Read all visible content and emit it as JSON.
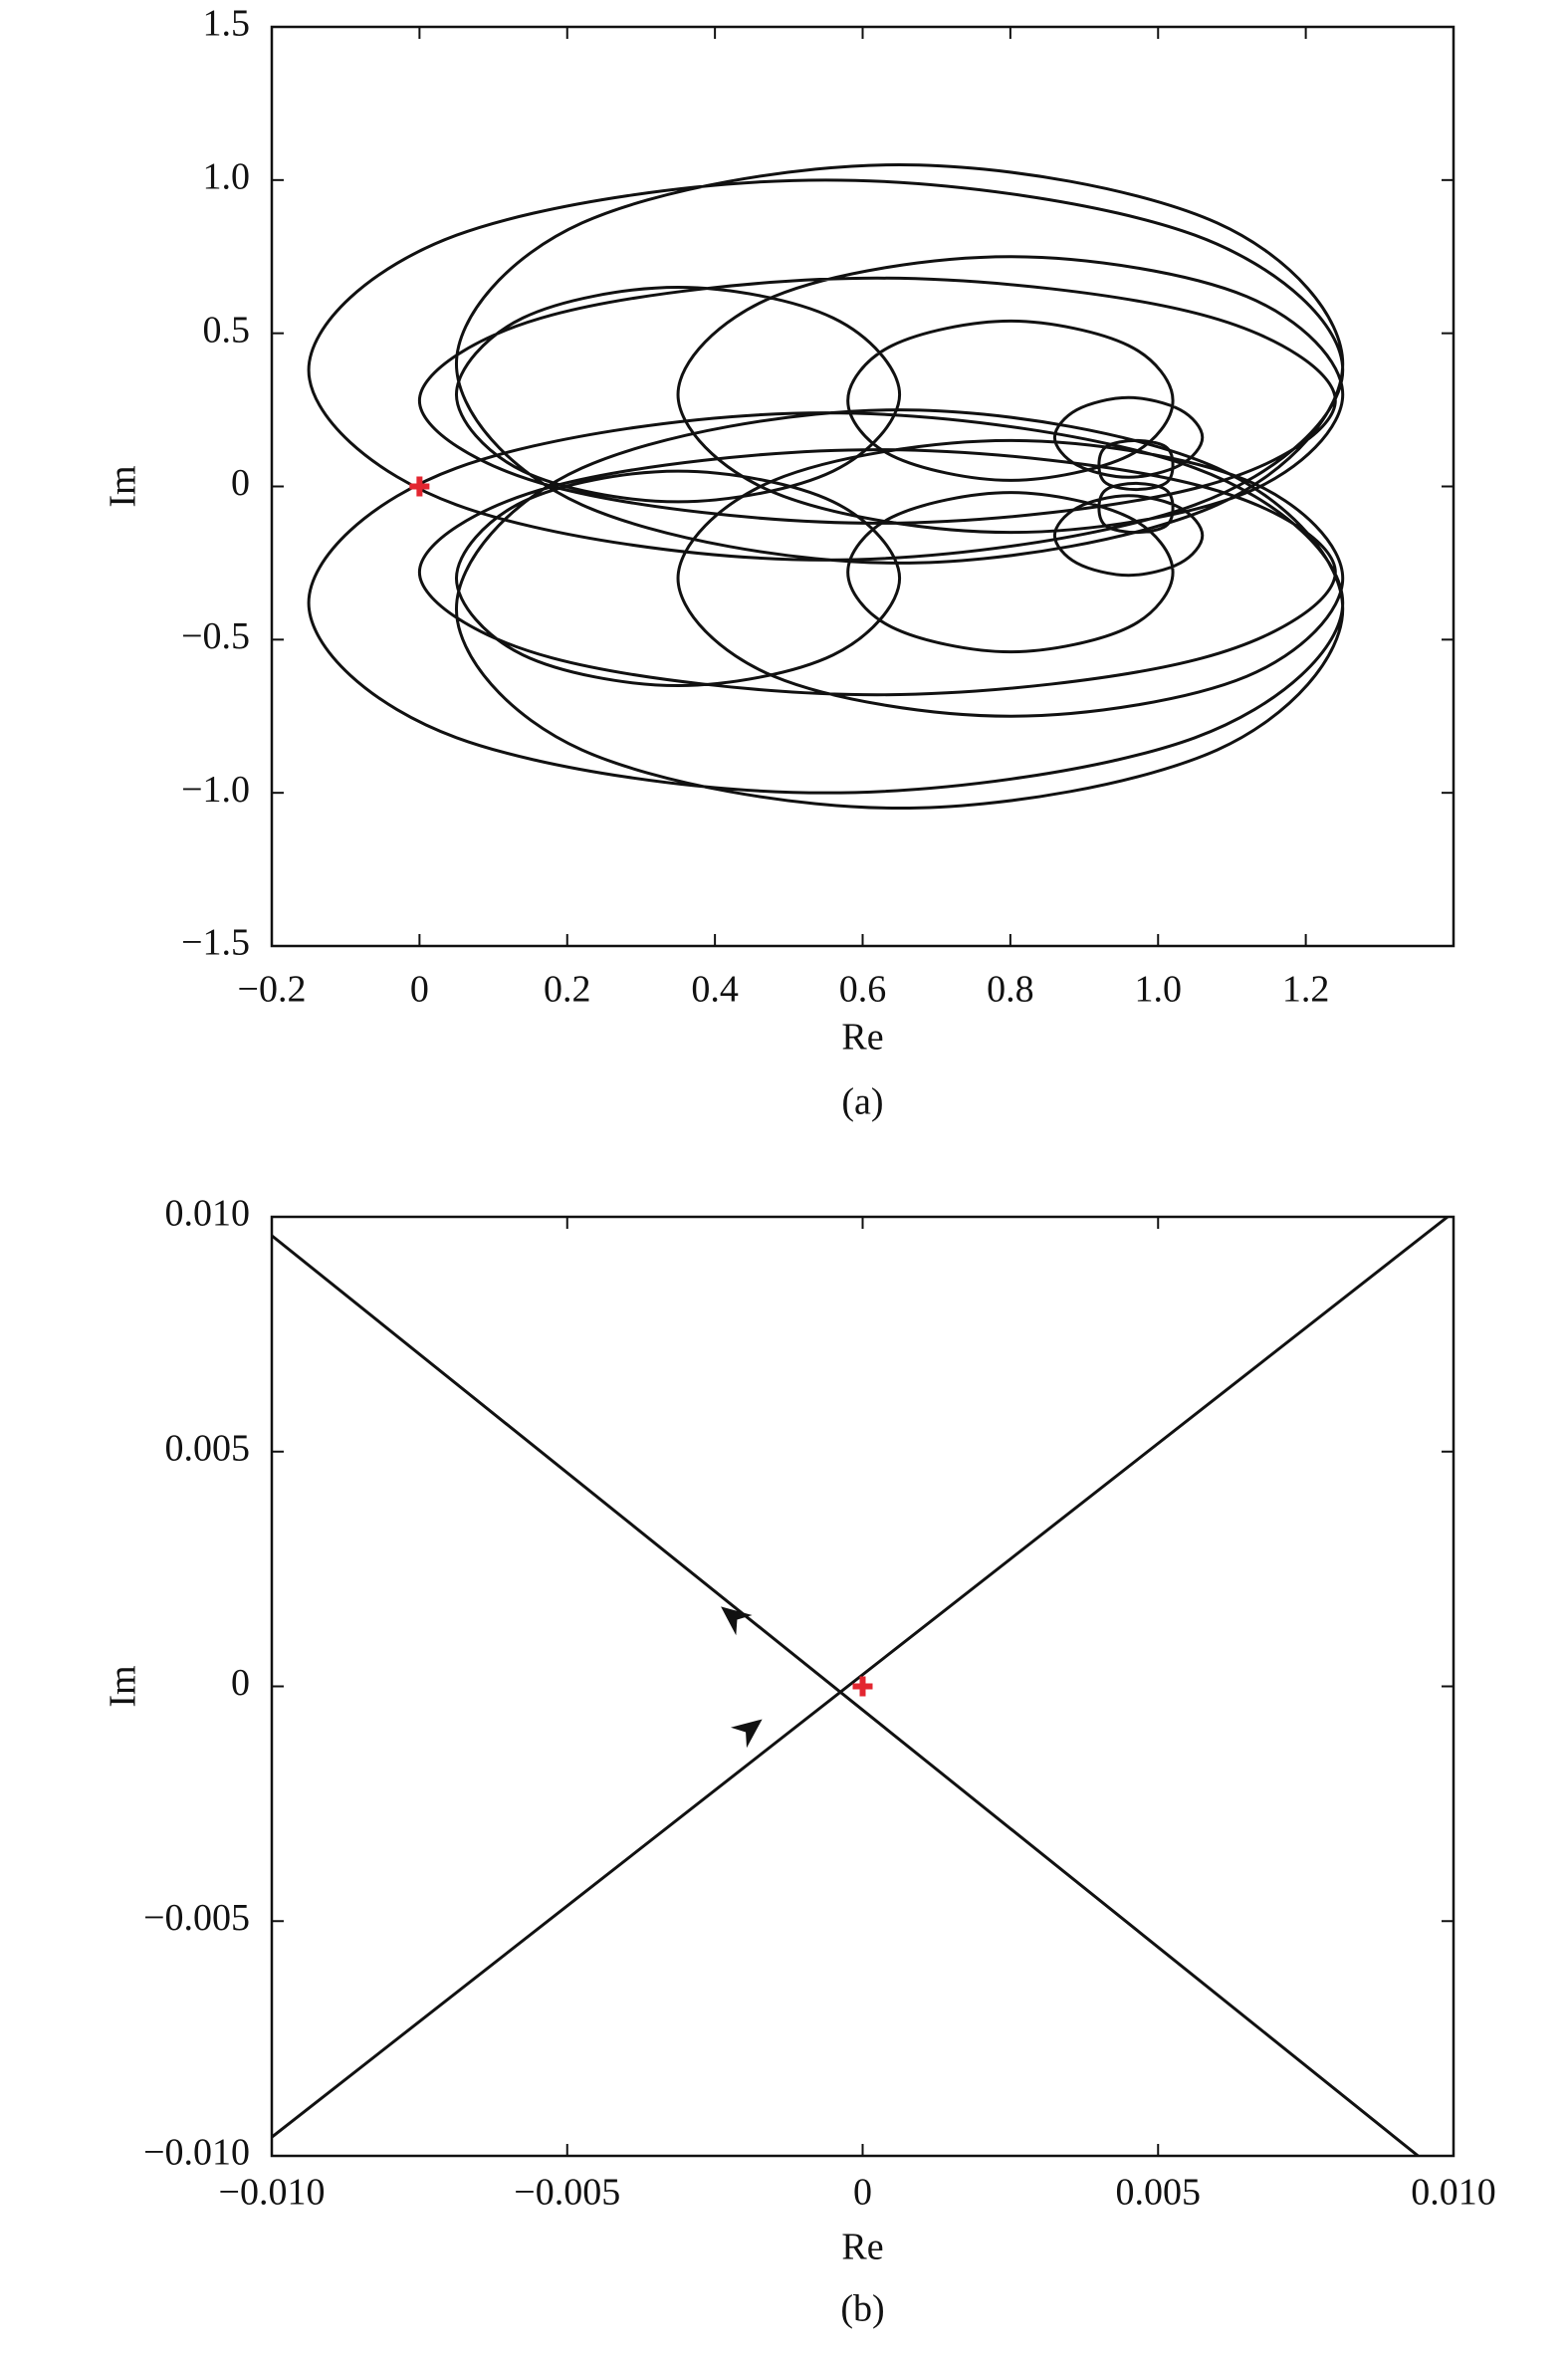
{
  "chart_data": [
    {
      "type": "line",
      "smooth": true,
      "xlabel": "Re",
      "ylabel": "Im",
      "caption": "(a)",
      "xlim": [
        -0.2,
        1.4
      ],
      "xticks": [
        {
          "value": -0.2,
          "label": "−0.2"
        },
        0,
        0.2,
        0.4,
        0.6,
        0.8,
        {
          "value": 1,
          "label": "1.0"
        },
        1.2
      ],
      "ylim": [
        -1.5,
        1.5
      ],
      "yticks": [
        {
          "value": -1.5,
          "label": "−1.5"
        },
        {
          "value": -1,
          "label": "−1.0"
        },
        {
          "value": -0.5,
          "label": "−0.5"
        },
        0,
        0.5,
        {
          "value": 1,
          "label": "1.0"
        },
        1.5
      ],
      "series": [
        {
          "color": "#111111",
          "x": [
            1.25,
            1.05,
            0.55,
            0.05,
            -0.15,
            0.05,
            0.55,
            1.05,
            1.25,
            null,
            1.25,
            1.08,
            0.65,
            0.22,
            0.05,
            0.22,
            0.65,
            1.08,
            1.25,
            null,
            1.24,
            1.06,
            0.62,
            0.18,
            0.0,
            0.18,
            0.62,
            1.06,
            1.24,
            null,
            0.65,
            0.56,
            0.35,
            0.14,
            0.05,
            0.14,
            0.35,
            0.56,
            0.65,
            null,
            1.25,
            1.12,
            0.8,
            0.48,
            0.35,
            0.48,
            0.8,
            1.12,
            1.25,
            null,
            1.02,
            0.96,
            0.8,
            0.64,
            0.58,
            0.64,
            0.8,
            0.96,
            1.02,
            null,
            1.06,
            1.03,
            0.96,
            0.89,
            0.86,
            0.89,
            0.96,
            1.03,
            1.06,
            null,
            1.02,
            1.01,
            0.97,
            0.93,
            0.92,
            0.93,
            0.97,
            1.01,
            1.02
          ],
          "y": [
            0.38,
            0.82,
            1.0,
            0.82,
            0.38,
            -0.06,
            -0.24,
            -0.06,
            0.38,
            null,
            0.4,
            0.86,
            1.05,
            0.86,
            0.4,
            -0.06,
            -0.25,
            -0.06,
            0.4,
            null,
            0.28,
            0.56,
            0.68,
            0.56,
            0.28,
            0.0,
            -0.12,
            0.0,
            0.28,
            null,
            0.3,
            0.55,
            0.65,
            0.55,
            0.3,
            0.05,
            -0.05,
            0.05,
            0.3,
            null,
            0.3,
            0.62,
            0.75,
            0.62,
            0.3,
            -0.02,
            -0.15,
            -0.02,
            0.3,
            null,
            0.28,
            0.46,
            0.54,
            0.46,
            0.28,
            0.1,
            0.02,
            0.1,
            0.28,
            null,
            0.16,
            0.25,
            0.29,
            0.25,
            0.16,
            0.07,
            0.03,
            0.07,
            0.16,
            null,
            0.07,
            0.13,
            0.15,
            0.13,
            0.07,
            0.01,
            -0.01,
            0.01,
            0.07
          ]
        },
        {
          "color": "#111111",
          "x": [
            1.25,
            1.05,
            0.55,
            0.05,
            -0.15,
            0.05,
            0.55,
            1.05,
            1.25,
            null,
            1.25,
            1.08,
            0.65,
            0.22,
            0.05,
            0.22,
            0.65,
            1.08,
            1.25,
            null,
            1.24,
            1.06,
            0.62,
            0.18,
            0.0,
            0.18,
            0.62,
            1.06,
            1.24,
            null,
            0.65,
            0.56,
            0.35,
            0.14,
            0.05,
            0.14,
            0.35,
            0.56,
            0.65,
            null,
            1.25,
            1.12,
            0.8,
            0.48,
            0.35,
            0.48,
            0.8,
            1.12,
            1.25,
            null,
            1.02,
            0.96,
            0.8,
            0.64,
            0.58,
            0.64,
            0.8,
            0.96,
            1.02,
            null,
            1.06,
            1.03,
            0.96,
            0.89,
            0.86,
            0.89,
            0.96,
            1.03,
            1.06,
            null,
            1.02,
            1.01,
            0.97,
            0.93,
            0.92,
            0.93,
            0.97,
            1.01,
            1.02
          ],
          "y": [
            -0.38,
            -0.82,
            -1.0,
            -0.82,
            -0.38,
            0.06,
            0.24,
            0.06,
            -0.38,
            null,
            -0.4,
            -0.86,
            -1.05,
            -0.86,
            -0.4,
            0.06,
            0.25,
            0.06,
            -0.4,
            null,
            -0.28,
            -0.56,
            -0.68,
            -0.56,
            -0.28,
            0.0,
            0.12,
            0.0,
            -0.28,
            null,
            -0.3,
            -0.55,
            -0.65,
            -0.55,
            -0.3,
            -0.05,
            0.05,
            -0.05,
            -0.3,
            null,
            -0.3,
            -0.62,
            -0.75,
            -0.62,
            -0.3,
            0.02,
            0.15,
            0.02,
            -0.3,
            null,
            -0.28,
            -0.46,
            -0.54,
            -0.46,
            -0.28,
            -0.1,
            -0.02,
            -0.1,
            -0.28,
            null,
            -0.16,
            -0.25,
            -0.29,
            -0.25,
            -0.16,
            -0.07,
            -0.03,
            -0.07,
            -0.16,
            null,
            -0.07,
            -0.13,
            -0.15,
            -0.13,
            -0.07,
            -0.01,
            0.01,
            -0.01,
            -0.07
          ]
        }
      ],
      "marker": {
        "x": 0,
        "y": 0,
        "color": "#e32630"
      }
    },
    {
      "type": "line",
      "smooth": false,
      "xlabel": "Re",
      "ylabel": "Im",
      "caption": "(b)",
      "xlim": [
        -0.01,
        0.01
      ],
      "xticks": [
        {
          "value": -0.01,
          "label": "−0.010"
        },
        {
          "value": -0.005,
          "label": "−0.005"
        },
        0,
        0.005,
        {
          "value": 0.01,
          "label": "0.010"
        }
      ],
      "ylim": [
        -0.01,
        0.01
      ],
      "yticks": [
        {
          "value": -0.01,
          "label": "−0.010"
        },
        {
          "value": -0.005,
          "label": "−0.005"
        },
        0,
        0.005,
        {
          "value": 0.01,
          "label": "0.010"
        }
      ],
      "series": [
        {
          "color": "#111111",
          "x": [
            -0.01,
            0.0099
          ],
          "y": [
            -0.0096,
            0.01
          ],
          "arrow": {
            "x": -0.0017,
            "y": -0.0007
          }
        },
        {
          "color": "#111111",
          "x": [
            0.0094,
            -0.01
          ],
          "y": [
            -0.01,
            0.0096
          ],
          "arrow": {
            "x": -0.0024,
            "y": 0.0017
          }
        }
      ],
      "marker": {
        "x": 0,
        "y": 0,
        "color": "#e32630"
      }
    }
  ]
}
